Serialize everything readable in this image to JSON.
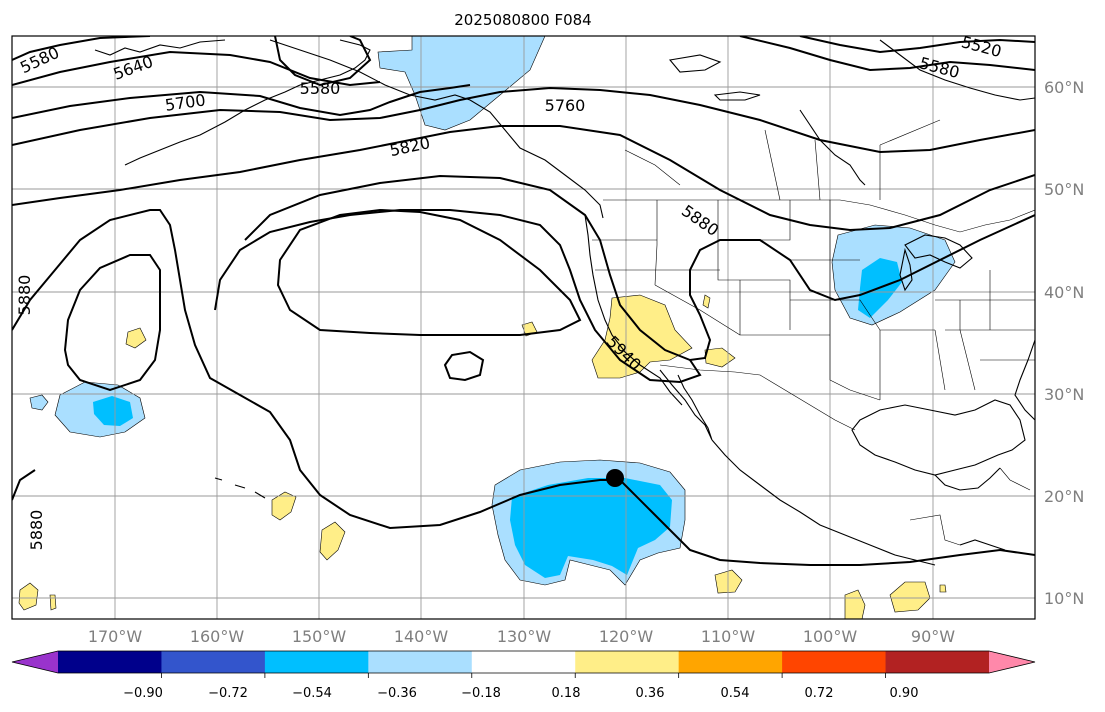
{
  "title": "2025080800 F084",
  "map": {
    "lat_labels": [
      "60°N",
      "50°N",
      "40°N",
      "30°N",
      "20°N",
      "10°N"
    ],
    "lon_labels": [
      "170°W",
      "160°W",
      "150°W",
      "140°W",
      "130°W",
      "120°W",
      "110°W",
      "100°W",
      "90°W"
    ],
    "contour_labels": [
      "5580",
      "5640",
      "5700",
      "5580",
      "5760",
      "5820",
      "5520",
      "5580",
      "5880",
      "5880",
      "5880",
      "5940"
    ],
    "storm_marker": {
      "lat": 21.8,
      "lon": -120.9
    }
  },
  "colorbar": {
    "ticks": [
      "−0.90",
      "−0.72",
      "−0.54",
      "−0.36",
      "−0.18",
      "0.18",
      "0.36",
      "0.54",
      "0.72",
      "0.90"
    ],
    "colors": [
      "#9933cc",
      "#00008b",
      "#3355cc",
      "#00bfff",
      "#aadfff",
      "#ffffff",
      "#ffee88",
      "#ffa500",
      "#ff4500",
      "#b22222",
      "#ff88aa"
    ]
  }
}
